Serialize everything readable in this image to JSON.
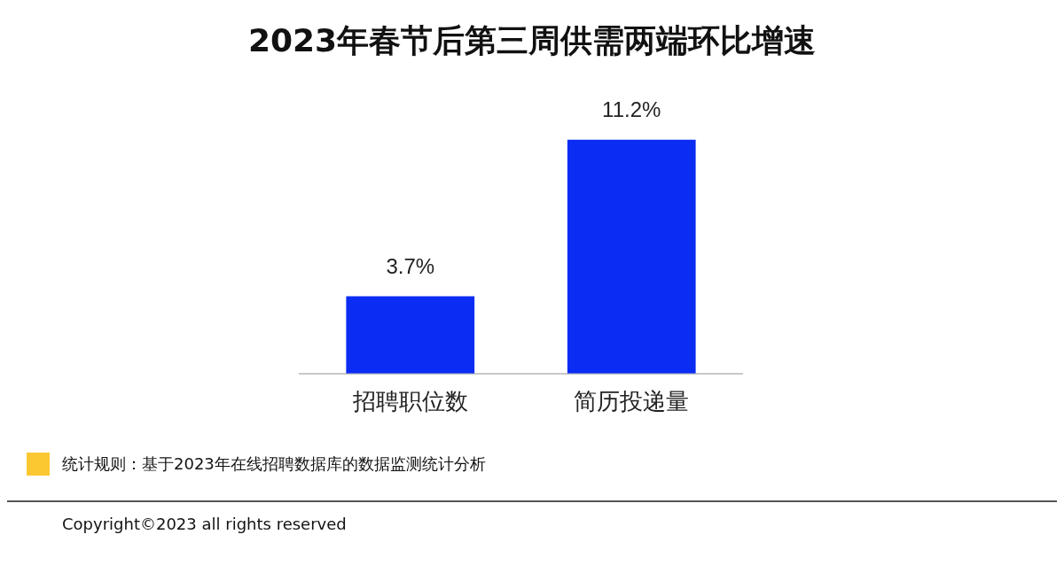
{
  "chart_data": {
    "type": "bar",
    "title": "2023年春节后第三周供需两端环比增速",
    "categories": [
      "招聘职位数",
      "简历投递量"
    ],
    "values": [
      3.7,
      11.2
    ],
    "color": "#0b2cf2",
    "value_labels": [
      "3.7%",
      "11.2%"
    ],
    "annotations": [
      "统计规则：基于2023年在线招聘数据库的数据监测统计分析",
      "Copyright©2023 all rights reserved"
    ]
  }
}
